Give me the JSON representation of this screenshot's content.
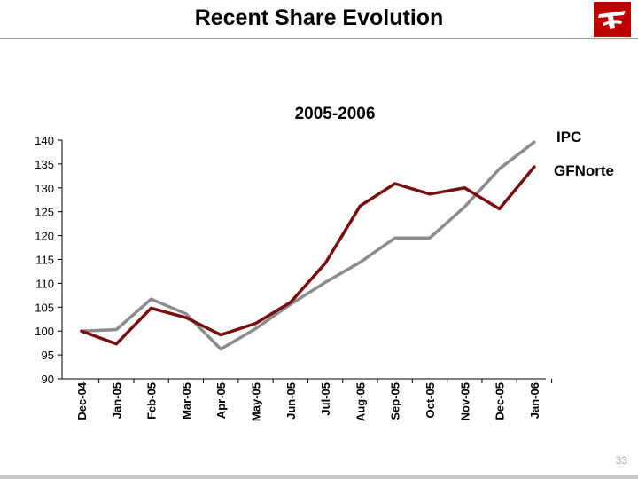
{
  "header": {
    "title": "Recent Share Evolution"
  },
  "page_number": "33",
  "colors": {
    "accent": "#c00000",
    "ipc": "#8c8c8c",
    "gfnorte": "#7a0f0f"
  },
  "icons": {
    "logo": "banorte-logo-icon"
  },
  "chart_data": {
    "type": "line",
    "title": "2005-2006",
    "xlabel": "",
    "ylabel": "",
    "categories": [
      "Dec-04",
      "Jan-05",
      "Feb-05",
      "Mar-05",
      "Apr-05",
      "May-05",
      "Jun-05",
      "Jul-05",
      "Aug-05",
      "Sep-05",
      "Oct-05",
      "Nov-05",
      "Dec-05",
      "Jan-06"
    ],
    "ylim": [
      90,
      140
    ],
    "yticks": [
      90,
      95,
      100,
      105,
      110,
      115,
      120,
      125,
      130,
      135,
      140
    ],
    "grid": false,
    "legend": "right",
    "series": [
      {
        "name": "IPC",
        "values": [
          100,
          100.3,
          106.7,
          103.6,
          96.2,
          100.5,
          105.6,
          110.2,
          114.4,
          119.5,
          119.5,
          126,
          134,
          139.6
        ]
      },
      {
        "name": "GFNorte",
        "values": [
          100,
          97.3,
          104.8,
          102.8,
          99.2,
          101.6,
          106,
          114.2,
          126.2,
          130.9,
          128.7,
          130,
          125.6,
          134.4
        ]
      }
    ]
  }
}
